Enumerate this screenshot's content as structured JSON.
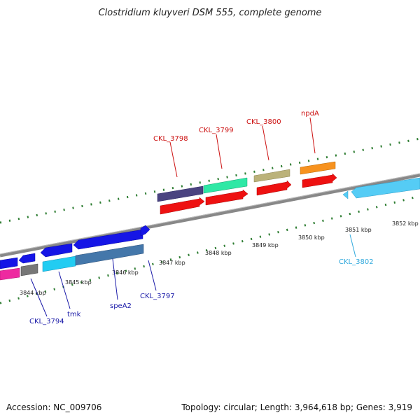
{
  "title": "Clostridium kluyveri DSM 555, complete genome",
  "footer": {
    "accession": "Accession: NC_009706",
    "summary": "Topology: circular; Length: 3,964,618 bp; Genes: 3,919"
  },
  "colors": {
    "backbone": "#888888",
    "tick": "#2e7d32",
    "label_blue": "#1a1aa8",
    "label_red": "#cc1111",
    "label_cyan": "#33aadd"
  },
  "ticks": [
    "3844 kbp",
    "3845 kbp",
    "3846 kbp",
    "3847 kbp",
    "3848 kbp",
    "3849 kbp",
    "3850 kbp",
    "3851 kbp",
    "3852 kbp"
  ],
  "gene_labels": {
    "ckl_3794": "CKL_3794",
    "tmk": "tmk",
    "spea2": "speA2",
    "ckl_3797": "CKL_3797",
    "ckl_3798": "CKL_3798",
    "ckl_3799": "CKL_3799",
    "ckl_3800": "CKL_3800",
    "npda": "npdA",
    "ckl_3802": "CKL_3802"
  }
}
